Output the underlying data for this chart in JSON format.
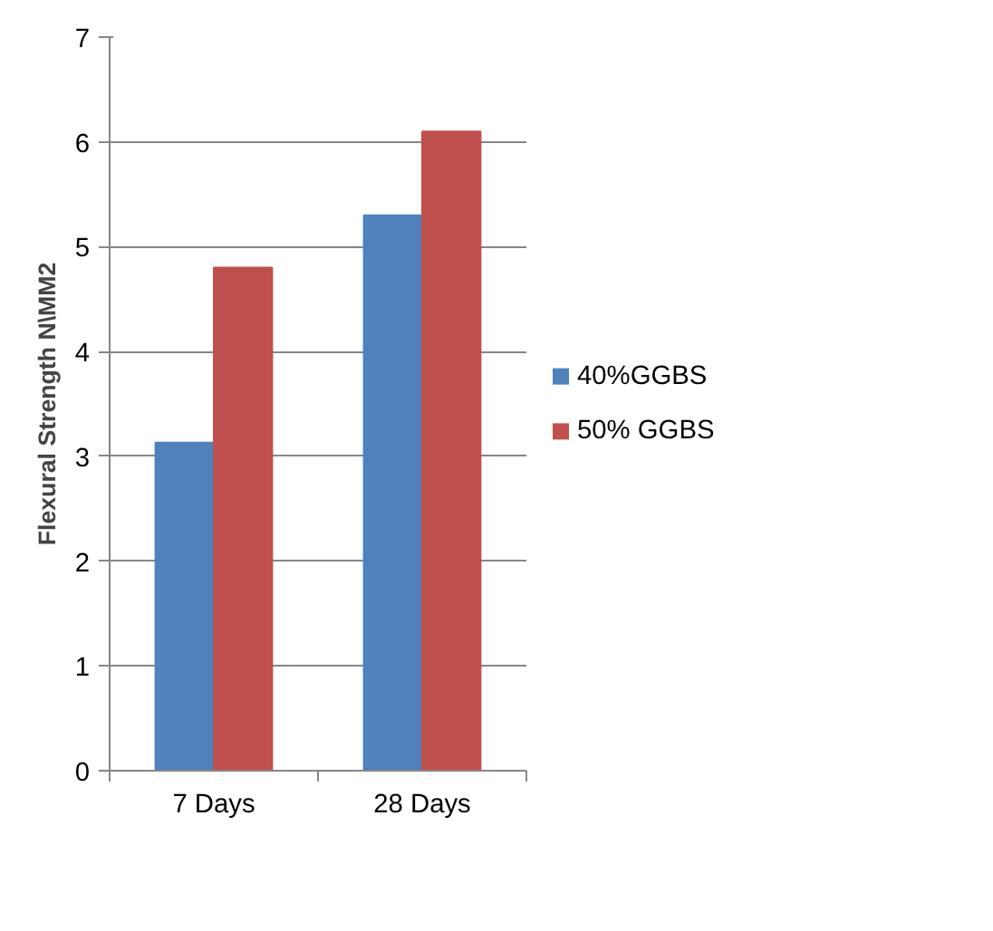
{
  "chart_data": {
    "type": "bar",
    "ylabel": "Flexural Strength N\\MM2",
    "categories": [
      "7 Days",
      "28 Days"
    ],
    "series": [
      {
        "name": "40%GGBS",
        "color": "#4f81bd",
        "values": [
          3.13,
          5.3
        ]
      },
      {
        "name": "50% GGBS",
        "color": "#c0504d",
        "values": [
          4.8,
          6.1
        ]
      }
    ],
    "ylim": [
      0,
      7
    ],
    "yticks": [
      0,
      1,
      2,
      3,
      4,
      5,
      6,
      7
    ],
    "grid": "y",
    "legend": "right"
  }
}
